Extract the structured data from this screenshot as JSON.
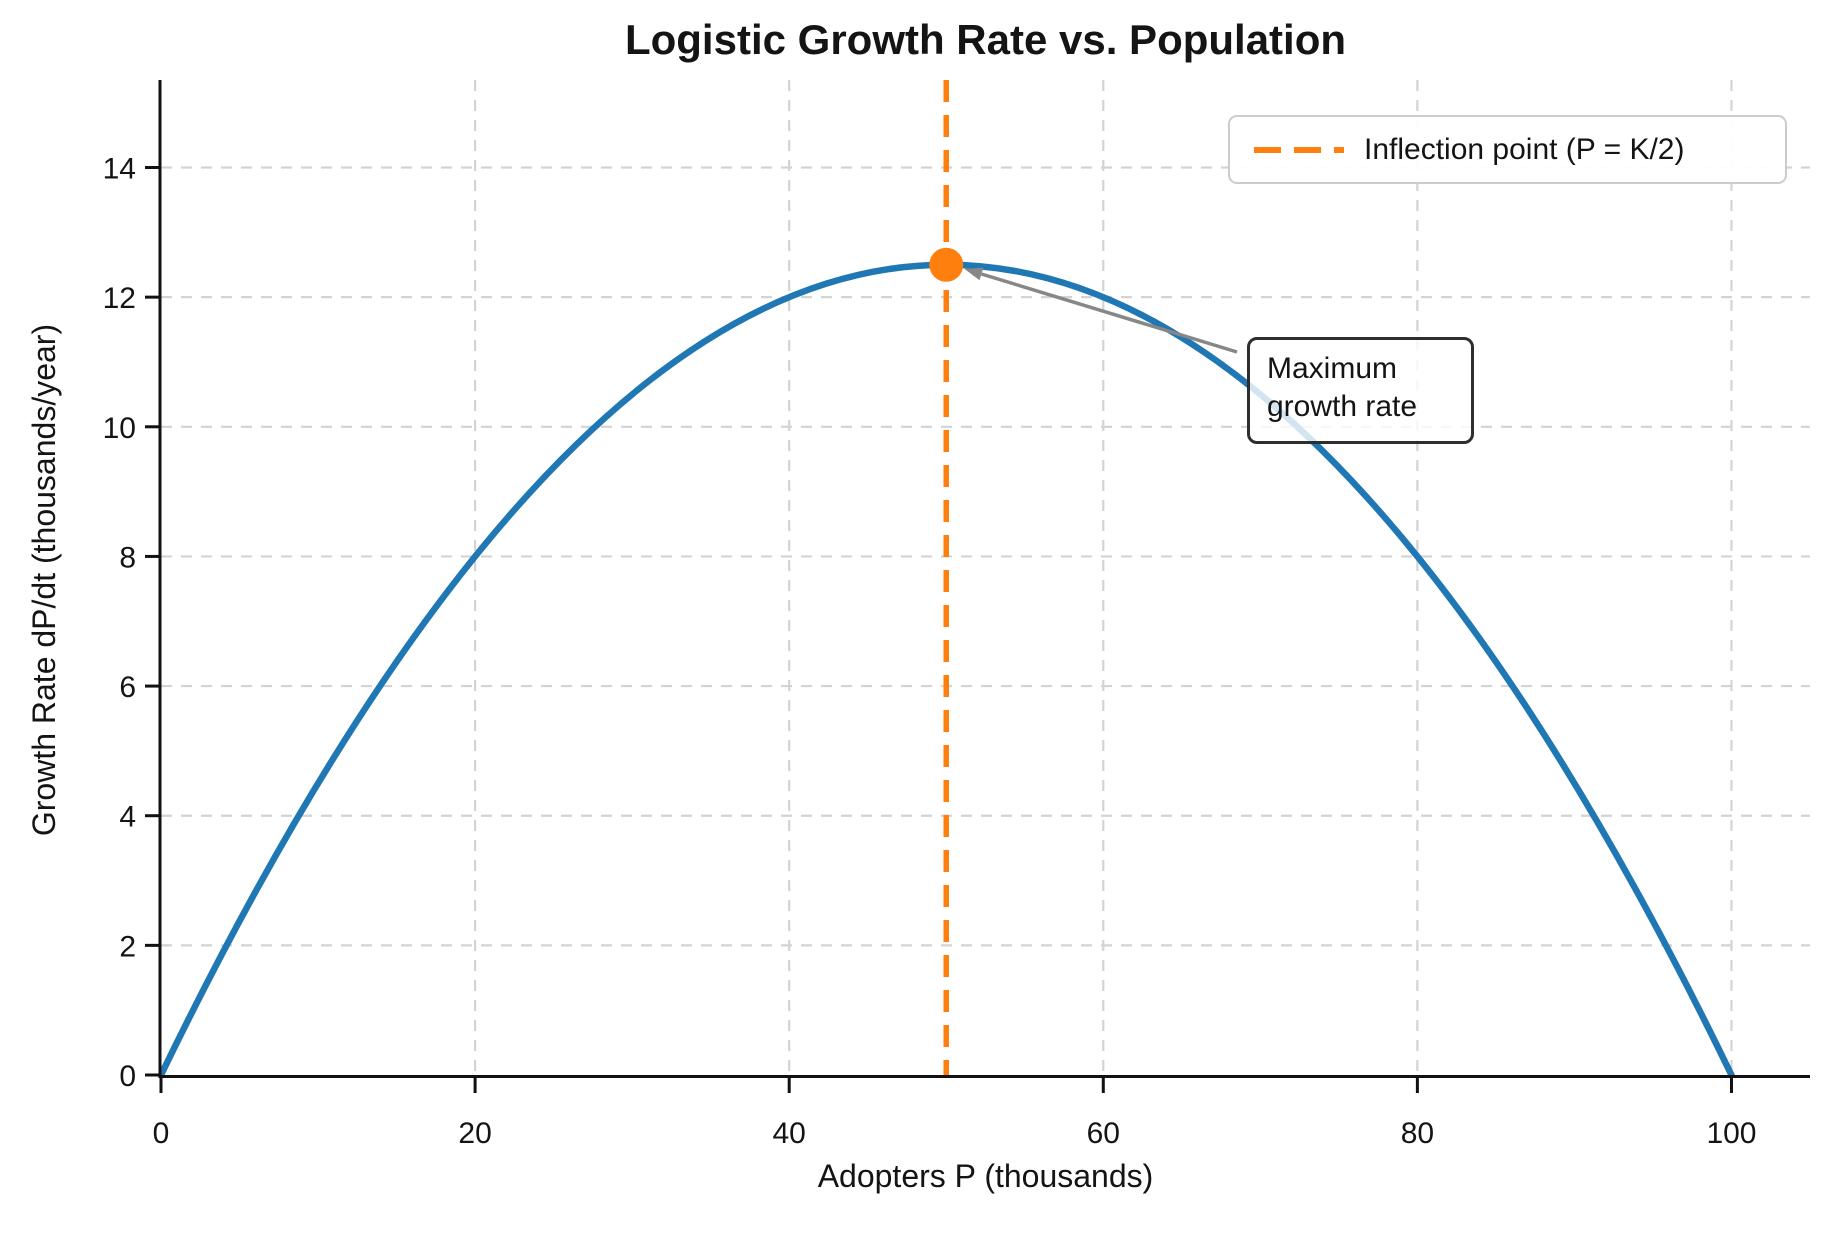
{
  "title": "Logistic Growth Rate vs. Population",
  "axes": {
    "xlabel": "Adopters P (thousands)",
    "ylabel": "Growth Rate dP/dt (thousands/year)",
    "xtick_labels": [
      "0",
      "20",
      "40",
      "60",
      "80",
      "100"
    ],
    "ytick_labels": [
      "0",
      "2",
      "4",
      "6",
      "8",
      "10",
      "12",
      "14"
    ]
  },
  "legend": {
    "label": "Inflection point (P = K/2)"
  },
  "annotation": {
    "line1": "Maximum",
    "line2": "growth rate"
  },
  "colors": {
    "curve": "#1f77b4",
    "accent": "#ff7f0e",
    "grid": "#d3d3d3",
    "spine": "#111111",
    "arrow": "#878787",
    "text": "#141414"
  },
  "chart_data": {
    "type": "line",
    "title": "Logistic Growth Rate vs. Population",
    "xlabel": "Adopters P (thousands)",
    "ylabel": "Growth Rate dP/dt (thousands/year)",
    "xlim": [
      0,
      105
    ],
    "ylim": [
      0,
      15.35
    ],
    "xticks": [
      0,
      20,
      40,
      60,
      80,
      100
    ],
    "yticks": [
      0,
      2,
      4,
      6,
      8,
      10,
      12,
      14
    ],
    "grid": true,
    "grid_style": "dashed",
    "legend_position": "upper right",
    "legend_entries": [
      "Inflection point (P = K/2)"
    ],
    "series": [
      {
        "x": [
          0,
          5,
          10,
          15,
          20,
          25,
          30,
          35,
          40,
          45,
          50,
          55,
          60,
          65,
          70,
          75,
          80,
          85,
          90,
          95,
          100
        ],
        "y": [
          0,
          2.375,
          4.5,
          6.375,
          8,
          9.375,
          10.5,
          11.375,
          12,
          12.375,
          12.5,
          12.375,
          12,
          11.375,
          10.5,
          9.375,
          8,
          6.375,
          4.5,
          2.375,
          0
        ]
      }
    ],
    "inflection_point": {
      "x": 50,
      "y": 12.5
    },
    "vline_x": 50,
    "annotation_text": "Maximum growth rate"
  }
}
